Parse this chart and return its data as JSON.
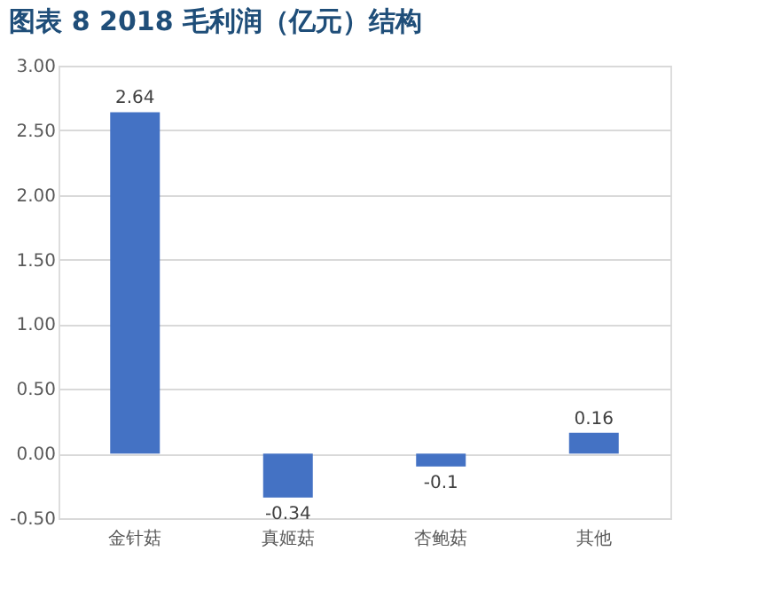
{
  "chart_data": {
    "type": "bar",
    "title": "图表 8 2018 毛利润（亿元）结构",
    "categories": [
      "金针菇",
      "真姬菇",
      "杏鲍菇",
      "其他"
    ],
    "values": [
      2.64,
      -0.34,
      -0.1,
      0.16
    ],
    "color": "#4472c4",
    "ylim": [
      -0.5,
      3.0
    ],
    "yticks": [
      {
        "value": -0.5,
        "label": "-0.50"
      },
      {
        "value": 0,
        "label": "0.00"
      },
      {
        "value": 0.5,
        "label": "0.50"
      },
      {
        "value": 1.0,
        "label": "1.00"
      },
      {
        "value": 1.5,
        "label": "1.50"
      },
      {
        "value": 2.0,
        "label": "2.00"
      },
      {
        "value": 2.5,
        "label": "2.50"
      },
      {
        "value": 3.0,
        "label": "3.00"
      }
    ],
    "grid": "y",
    "data_labels": true
  }
}
